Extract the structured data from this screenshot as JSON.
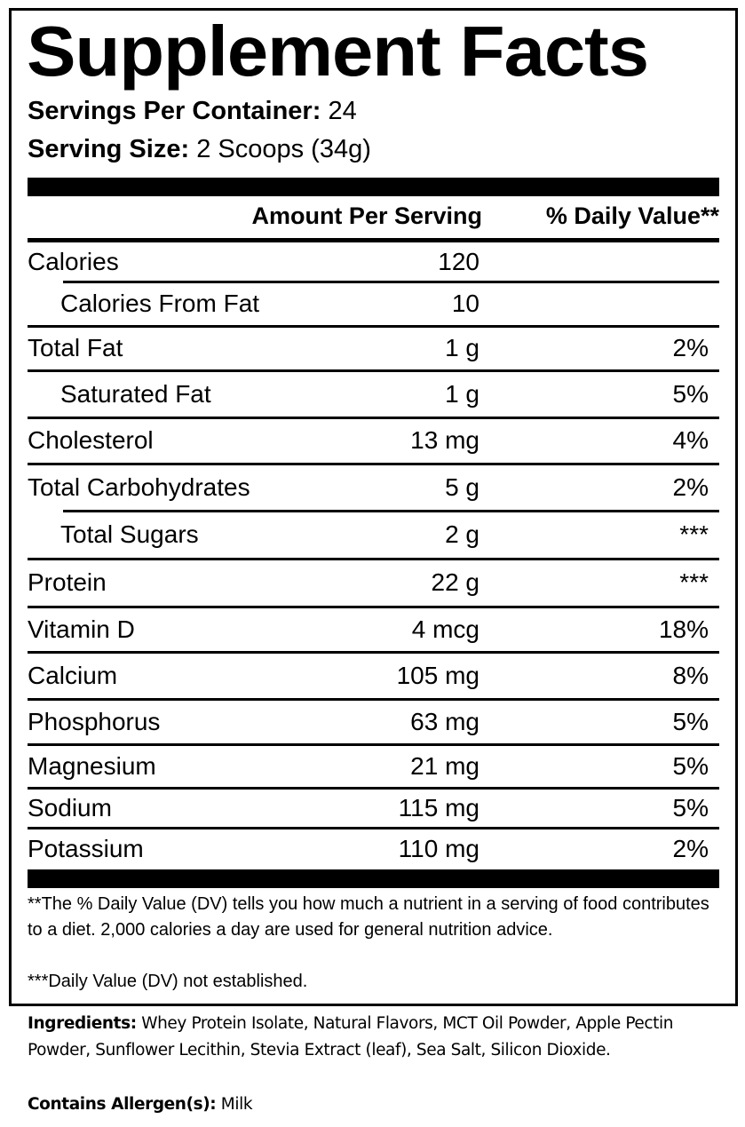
{
  "title": "Supplement Facts",
  "servings_per_container": {
    "label": "Servings Per Container:",
    "value": "24"
  },
  "serving_size": {
    "label": "Serving Size:",
    "value": "2 Scoops (34g)"
  },
  "headers": {
    "amount": "Amount Per Serving",
    "dv": "% Daily Value**"
  },
  "rows": [
    {
      "name": "Calories",
      "amount": "120",
      "dv": "",
      "indent": false
    },
    {
      "name": "Calories From Fat",
      "amount": "10",
      "dv": "",
      "indent": true
    },
    {
      "name": "Total Fat",
      "amount": "1 g",
      "dv": "2%",
      "indent": false
    },
    {
      "name": "Saturated Fat",
      "amount": "1 g",
      "dv": "5%",
      "indent": true
    },
    {
      "name": "Cholesterol",
      "amount": "13 mg",
      "dv": "4%",
      "indent": false
    },
    {
      "name": "Total Carbohydrates",
      "amount": "5 g",
      "dv": "2%",
      "indent": false
    },
    {
      "name": "Total Sugars",
      "amount": "2 g",
      "dv": "***",
      "indent": true
    },
    {
      "name": "Protein",
      "amount": "22 g",
      "dv": "***",
      "indent": false
    },
    {
      "name": "Vitamin D",
      "amount": "4 mcg",
      "dv": "18%",
      "indent": false
    },
    {
      "name": "Calcium",
      "amount": "105 mg",
      "dv": "8%",
      "indent": false
    },
    {
      "name": "Phosphorus",
      "amount": "63 mg",
      "dv": "5%",
      "indent": false
    },
    {
      "name": "Magnesium",
      "amount": "21 mg",
      "dv": "5%",
      "indent": false
    },
    {
      "name": "Sodium",
      "amount": "115 mg",
      "dv": "5%",
      "indent": false
    },
    {
      "name": "Potassium",
      "amount": "110 mg",
      "dv": "2%",
      "indent": false
    }
  ],
  "footnotes": {
    "dv_note": "**The % Daily Value (DV) tells you how much a nutrient in a serving of food contributes to a diet. 2,000 calories a day are used for general nutrition advice.",
    "not_established": "***Daily Value (DV) not established."
  },
  "ingredients": {
    "label": "Ingredients:",
    "text": " Whey Protein Isolate, Natural Flavors, MCT Oil Powder, Apple Pectin Powder, Sunflower Lecithin, Stevia Extract (leaf), Sea Salt, Silicon Dioxide."
  },
  "allergens": {
    "label": "Contains Allergen(s):",
    "text": " Milk"
  }
}
